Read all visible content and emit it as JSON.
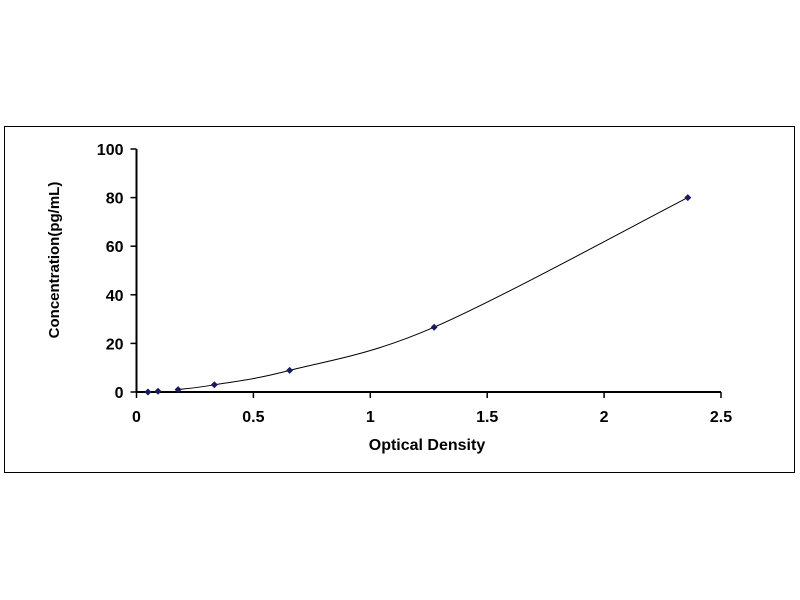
{
  "chart_data": {
    "type": "scatter",
    "title": "",
    "xlabel": "Optical Density",
    "ylabel": "Concentration(pg/mL)",
    "xlim": [
      0,
      2.5
    ],
    "ylim": [
      0,
      100
    ],
    "x_ticks": [
      "0",
      "0.5",
      "1",
      "1.5",
      "2",
      "2.5"
    ],
    "y_ticks": [
      "0",
      "20",
      "40",
      "60",
      "80",
      "100"
    ],
    "grid": false,
    "legend": "none",
    "marker_color": "#1a1a5e",
    "line_color": "#000000",
    "series": [
      {
        "x": [
          0.049,
          0.092,
          0.178,
          0.333,
          0.655,
          1.273,
          2.358
        ],
        "y": [
          0,
          0.33,
          0.99,
          2.96,
          8.89,
          26.67,
          80
        ]
      }
    ]
  }
}
